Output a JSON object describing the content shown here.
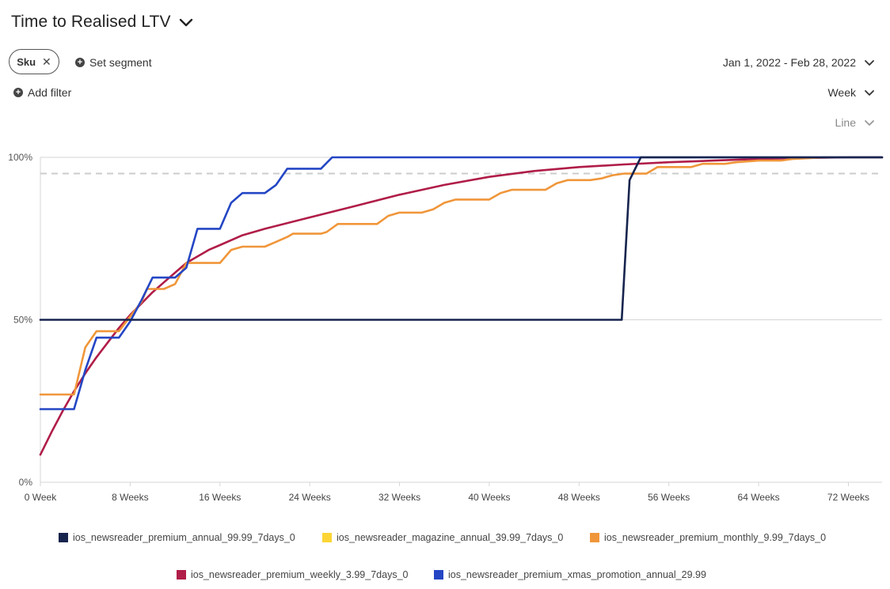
{
  "header": {
    "title": "Time to Realised LTV",
    "chip_label": "Sku",
    "set_segment_label": "Set segment",
    "add_filter_label": "Add filter",
    "date_range": "Jan 1, 2022 - Feb 28, 2022",
    "granularity": "Week",
    "chart_type_select": "Line"
  },
  "chart_data": {
    "type": "line",
    "x_unit": "weeks",
    "xlim": [
      0,
      75
    ],
    "ylim": [
      0,
      100
    ],
    "x_ticks": [
      0,
      8,
      16,
      24,
      32,
      40,
      48,
      56,
      64,
      72
    ],
    "x_tick_labels": [
      "0 Week",
      "8 Weeks",
      "16 Weeks",
      "24 Weeks",
      "32 Weeks",
      "40 Weeks",
      "48 Weeks",
      "56 Weeks",
      "64 Weeks",
      "72 Weeks"
    ],
    "y_ticks": [
      0,
      50,
      100
    ],
    "y_tick_labels": [
      "0%",
      "50%",
      "100%"
    ],
    "grid": "horizontal",
    "legend_position": "bottom",
    "reference_line": {
      "y": 95,
      "style": "dashed",
      "color": "#cccccc"
    },
    "series": [
      {
        "name": "ios_newsreader_premium_annual_99.99_7days_0",
        "color": "#17244e",
        "points": [
          [
            0,
            50
          ],
          [
            51.8,
            50
          ],
          [
            52.5,
            93
          ],
          [
            53.5,
            100
          ],
          [
            75,
            100
          ]
        ]
      },
      {
        "name": "ios_newsreader_magazine_annual_39.99_7days_0",
        "color": "#fcd535",
        "points": []
      },
      {
        "name": "ios_newsreader_premium_monthly_9.99_7days_0",
        "color": "#f0963a",
        "points": [
          [
            0,
            27
          ],
          [
            3,
            27
          ],
          [
            4,
            41.5
          ],
          [
            5,
            46.5
          ],
          [
            7,
            46.5
          ],
          [
            8,
            51
          ],
          [
            9,
            55.5
          ],
          [
            9.5,
            59.5
          ],
          [
            11,
            59.5
          ],
          [
            12,
            61
          ],
          [
            13,
            67.5
          ],
          [
            16,
            67.5
          ],
          [
            17,
            71.5
          ],
          [
            18,
            72.5
          ],
          [
            20,
            72.5
          ],
          [
            21,
            74
          ],
          [
            22,
            75.5
          ],
          [
            22.5,
            76.5
          ],
          [
            25,
            76.5
          ],
          [
            25.5,
            77
          ],
          [
            26.5,
            79.5
          ],
          [
            30,
            79.5
          ],
          [
            31,
            82
          ],
          [
            32,
            83
          ],
          [
            34,
            83
          ],
          [
            35,
            84
          ],
          [
            36,
            86
          ],
          [
            37,
            87
          ],
          [
            39,
            87
          ],
          [
            40,
            87
          ],
          [
            41,
            89
          ],
          [
            42,
            90
          ],
          [
            44,
            90
          ],
          [
            45,
            90
          ],
          [
            46,
            92
          ],
          [
            47,
            93
          ],
          [
            49,
            93
          ],
          [
            50,
            93.5
          ],
          [
            51,
            94.5
          ],
          [
            52,
            95
          ],
          [
            53,
            95
          ],
          [
            54,
            95
          ],
          [
            55,
            97
          ],
          [
            58,
            97
          ],
          [
            59,
            98
          ],
          [
            61,
            98
          ],
          [
            62,
            98.5
          ],
          [
            64,
            99
          ],
          [
            65,
            99
          ],
          [
            66,
            99
          ],
          [
            67,
            99.5
          ],
          [
            70,
            100
          ],
          [
            75,
            100
          ]
        ]
      },
      {
        "name": "ios_newsreader_premium_weekly_3.99_7days_0",
        "color": "#b01d48",
        "points": [
          [
            0,
            8.5
          ],
          [
            1,
            15.5
          ],
          [
            2,
            22
          ],
          [
            3,
            28
          ],
          [
            4,
            33.5
          ],
          [
            5,
            38.5
          ],
          [
            6,
            43
          ],
          [
            7,
            47.5
          ],
          [
            8,
            51.5
          ],
          [
            9,
            55
          ],
          [
            10,
            58.5
          ],
          [
            11,
            61.5
          ],
          [
            12,
            64.5
          ],
          [
            13,
            67.5
          ],
          [
            14,
            69.5
          ],
          [
            15,
            71.5
          ],
          [
            16,
            73
          ],
          [
            18,
            76
          ],
          [
            20,
            78
          ],
          [
            24,
            81.5
          ],
          [
            28,
            85
          ],
          [
            32,
            88.5
          ],
          [
            36,
            91.5
          ],
          [
            40,
            94
          ],
          [
            44,
            95.8
          ],
          [
            48,
            97
          ],
          [
            52,
            97.8
          ],
          [
            56,
            98.5
          ],
          [
            60,
            99
          ],
          [
            64,
            99.5
          ],
          [
            68,
            99.8
          ],
          [
            72,
            100
          ],
          [
            75,
            100
          ]
        ]
      },
      {
        "name": "ios_newsreader_premium_xmas_promotion_annual_29.99",
        "color": "#2446c4",
        "points": [
          [
            0,
            22.5
          ],
          [
            3,
            22.5
          ],
          [
            4,
            34.5
          ],
          [
            5,
            44.5
          ],
          [
            7,
            44.5
          ],
          [
            8,
            49.5
          ],
          [
            9,
            56
          ],
          [
            10,
            63
          ],
          [
            12,
            63
          ],
          [
            13,
            66
          ],
          [
            14,
            78
          ],
          [
            16,
            78
          ],
          [
            17,
            86
          ],
          [
            18,
            89
          ],
          [
            20,
            89
          ],
          [
            21,
            91.5
          ],
          [
            22,
            96.5
          ],
          [
            25,
            96.5
          ],
          [
            26,
            100
          ],
          [
            75,
            100
          ]
        ]
      }
    ]
  }
}
